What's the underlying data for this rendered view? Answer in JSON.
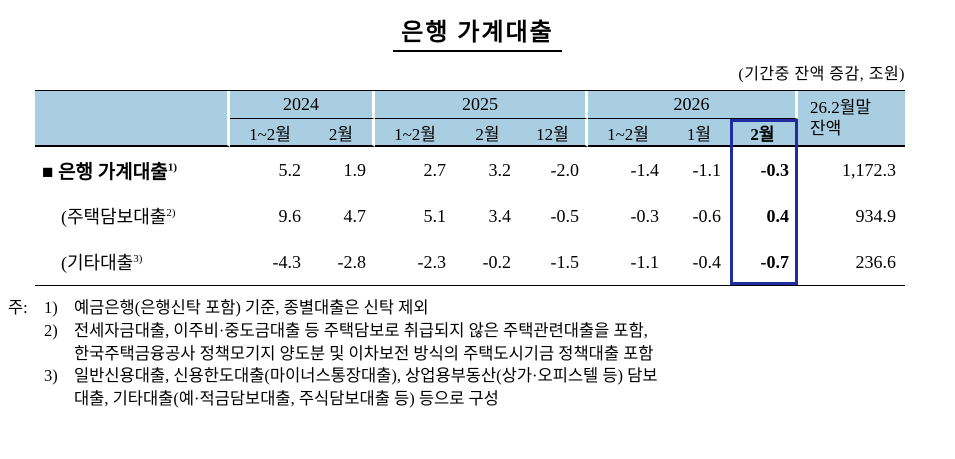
{
  "title": "은행 가계대출",
  "unit_note": "(기간중 잔액 증감, 조원)",
  "colors": {
    "header_bg": "#a9cde1",
    "highlight_border": "#1f2da0"
  },
  "table": {
    "groups": [
      {
        "label": "2024",
        "cols": [
          "1~2월",
          "2월"
        ]
      },
      {
        "label": "2025",
        "cols": [
          "1~2월",
          "2월",
          "12월"
        ]
      },
      {
        "label": "2026",
        "cols": [
          "1~2월",
          "1월",
          "2월"
        ]
      }
    ],
    "balance_header": "26.2월말\n잔액",
    "rows": [
      {
        "label": "■ 은행 가계대출",
        "sup": "1)",
        "values": [
          "5.2",
          "1.9",
          "2.7",
          "3.2",
          "-2.0",
          "-1.4",
          "-1.1",
          "-0.3",
          "1,172.3"
        ]
      },
      {
        "label": "(주택담보대출",
        "sup": "2)",
        "values": [
          "9.6",
          "4.7",
          "5.1",
          "3.4",
          "-0.5",
          "-0.3",
          "-0.6",
          "0.4",
          "934.9"
        ]
      },
      {
        "label": "(기타대출",
        "sup": "3)",
        "values": [
          "-4.3",
          "-2.8",
          "-2.3",
          "-0.2",
          "-1.5",
          "-1.1",
          "-0.4",
          "-0.7",
          "236.6"
        ]
      }
    ]
  },
  "footnotes": {
    "prefix": "주:",
    "items": [
      {
        "marker": "1)",
        "text": "예금은행(은행신탁 포함) 기준, 종별대출은 신탁 제외"
      },
      {
        "marker": "2)",
        "text": "전세자금대출, 이주비·중도금대출 등 주택담보로 취급되지 않은 주택관련대출을 포함,\n한국주택금융공사 정책모기지 양도분 및 이차보전 방식의 주택도시기금 정책대출 포함"
      },
      {
        "marker": "3)",
        "text": "일반신용대출, 신용한도대출(마이너스통장대출), 상업용부동산(상가·오피스텔 등) 담보\n대출, 기타대출(예·적금담보대출, 주식담보대출 등) 등으로 구성"
      }
    ]
  }
}
